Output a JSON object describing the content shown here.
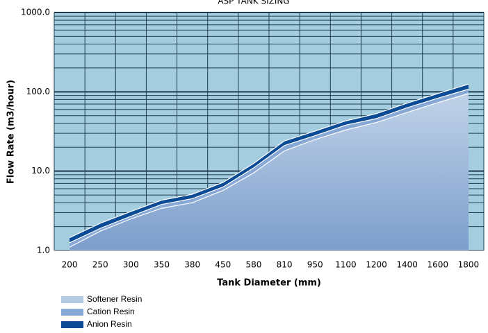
{
  "chart_data": {
    "type": "area",
    "title": "ASP TANK SIZING",
    "x_label": "Tank Diameter (mm)",
    "y_label": "Flow Rate (m3/hour)",
    "categories": [
      "200",
      "250",
      "300",
      "350",
      "380",
      "450",
      "580",
      "810",
      "950",
      "1100",
      "1200",
      "1400",
      "1600",
      "1800"
    ],
    "series": [
      {
        "name": "Softener Resin",
        "color": "#b4c9e3",
        "values": [
          1.1,
          1.75,
          2.5,
          3.4,
          4.0,
          5.7,
          9.5,
          18,
          25,
          33,
          41,
          55,
          73,
          95
        ]
      },
      {
        "name": "Cation Resin",
        "color": "#88a8d6",
        "values": [
          1.25,
          1.9,
          2.7,
          3.8,
          4.5,
          6.3,
          11,
          21,
          28,
          38,
          46,
          63,
          83,
          108
        ]
      },
      {
        "name": "Anion Resin",
        "color": "#0b4a94",
        "values": [
          1.45,
          2.2,
          3.1,
          4.3,
          5.1,
          7.2,
          12.5,
          24,
          32,
          43,
          53,
          72,
          95,
          125
        ]
      }
    ],
    "ylim": [
      1,
      1000
    ],
    "log_y": true,
    "yticks": [
      {
        "value": 1,
        "label": "1.0"
      },
      {
        "value": 10,
        "label": "10.0"
      },
      {
        "value": 100,
        "label": "100.0"
      },
      {
        "value": 1000,
        "label": "1000.0"
      }
    ],
    "grid": true,
    "legend": "bottom-left"
  }
}
